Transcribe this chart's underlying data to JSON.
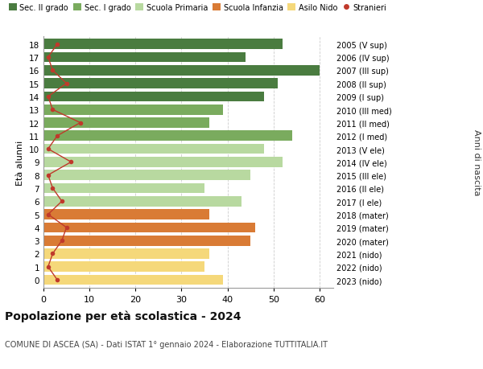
{
  "ages": [
    18,
    17,
    16,
    15,
    14,
    13,
    12,
    11,
    10,
    9,
    8,
    7,
    6,
    5,
    4,
    3,
    2,
    1,
    0
  ],
  "bar_values": [
    52,
    44,
    60,
    51,
    48,
    39,
    36,
    54,
    48,
    52,
    45,
    35,
    43,
    36,
    46,
    45,
    36,
    35,
    39
  ],
  "stranieri": [
    3,
    1,
    2,
    5,
    1,
    2,
    8,
    3,
    1,
    6,
    1,
    2,
    4,
    1,
    5,
    4,
    2,
    1,
    3
  ],
  "right_labels": [
    "2005 (V sup)",
    "2006 (IV sup)",
    "2007 (III sup)",
    "2008 (II sup)",
    "2009 (I sup)",
    "2010 (III med)",
    "2011 (II med)",
    "2012 (I med)",
    "2013 (V ele)",
    "2014 (IV ele)",
    "2015 (III ele)",
    "2016 (II ele)",
    "2017 (I ele)",
    "2018 (mater)",
    "2019 (mater)",
    "2020 (mater)",
    "2021 (nido)",
    "2022 (nido)",
    "2023 (nido)"
  ],
  "bar_colors": [
    "#4a7c40",
    "#4a7c40",
    "#4a7c40",
    "#4a7c40",
    "#4a7c40",
    "#7aab5e",
    "#7aab5e",
    "#7aab5e",
    "#b8d9a0",
    "#b8d9a0",
    "#b8d9a0",
    "#b8d9a0",
    "#b8d9a0",
    "#d97b35",
    "#d97b35",
    "#d97b35",
    "#f5d87a",
    "#f5d87a",
    "#f5d87a"
  ],
  "legend_labels": [
    "Sec. II grado",
    "Sec. I grado",
    "Scuola Primaria",
    "Scuola Infanzia",
    "Asilo Nido",
    "Stranieri"
  ],
  "legend_colors": [
    "#4a7c40",
    "#7aab5e",
    "#b8d9a0",
    "#d97b35",
    "#f5d87a",
    "#c0392b"
  ],
  "stranieri_color": "#c0392b",
  "title": "Popolazione per età scolastica - 2024",
  "subtitle": "COMUNE DI ASCEA (SA) - Dati ISTAT 1° gennaio 2024 - Elaborazione TUTTITALIA.IT",
  "ylabel": "Età alunni",
  "right_ylabel": "Anni di nascita",
  "xlabel_ticks": [
    0,
    10,
    20,
    30,
    40,
    50,
    60
  ],
  "xlim": [
    0,
    63
  ],
  "background_color": "#ffffff",
  "grid_color": "#cccccc"
}
